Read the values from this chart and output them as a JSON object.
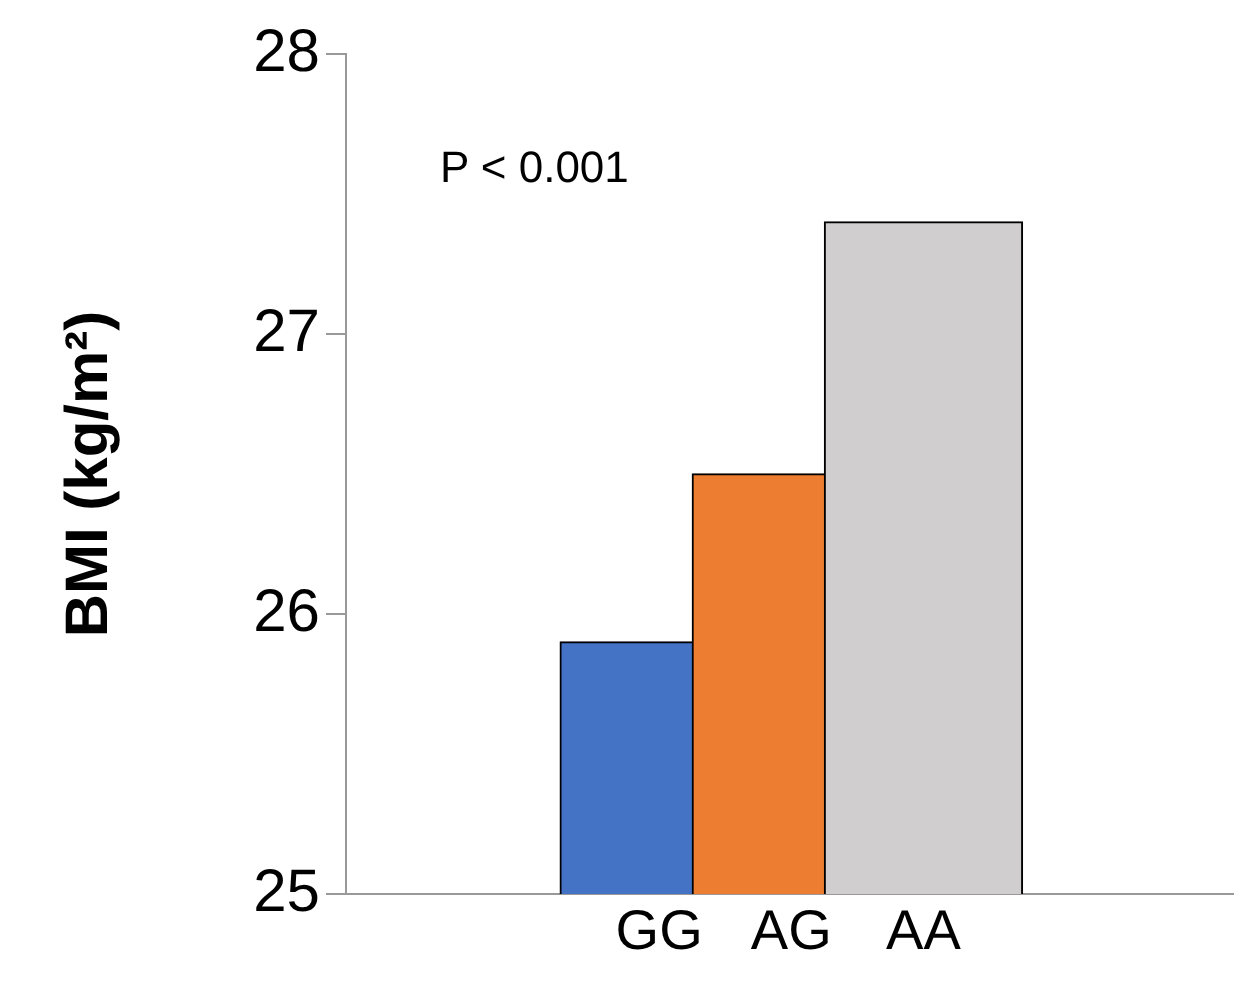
{
  "chart_data": {
    "type": "bar",
    "ylabel": "BMI (kg/m²)",
    "categories": [
      "GG",
      "AG",
      "AA"
    ],
    "values": [
      25.9,
      26.5,
      27.4
    ],
    "colors": [
      "#4472c4",
      "#ed7d31",
      "#d0cece"
    ],
    "ylim": [
      25,
      28
    ],
    "yticks": [
      25,
      26,
      27,
      28
    ],
    "grid": false,
    "legend": false,
    "annotations": [
      "P < 0.001"
    ]
  }
}
